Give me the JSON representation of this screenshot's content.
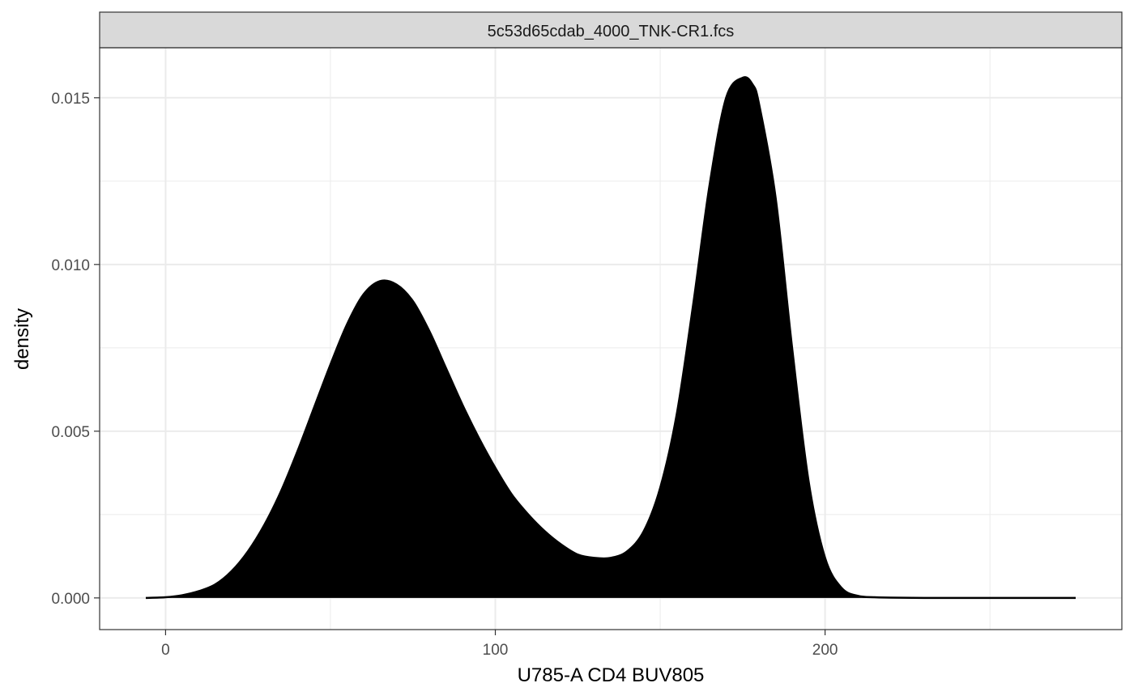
{
  "chart_data": {
    "type": "area",
    "facet_label": "5c53d65cdab_4000_TNK-CR1.fcs",
    "xlabel": "U785-A CD4 BUV805",
    "ylabel": "density",
    "xlim": [
      -20,
      290
    ],
    "ylim": [
      -0.00095,
      0.0165
    ],
    "x_ticks": [
      0,
      100,
      200
    ],
    "x_tick_labels": [
      "0",
      "100",
      "200"
    ],
    "y_ticks": [
      0.0,
      0.005,
      0.01,
      0.015
    ],
    "y_tick_labels": [
      "0.000",
      "0.005",
      "0.010",
      "0.015"
    ],
    "grid": true,
    "fill_color": "#000000",
    "series": [
      {
        "x": [
          -6,
          0,
          5,
          10,
          15,
          20,
          25,
          30,
          35,
          40,
          45,
          50,
          55,
          60,
          65,
          70,
          75,
          80,
          85,
          90,
          95,
          100,
          105,
          110,
          115,
          120,
          125,
          130,
          135,
          140,
          145,
          150,
          155,
          160,
          165,
          170,
          175,
          178,
          180,
          185,
          190,
          195,
          200,
          205,
          210,
          215,
          220,
          230,
          240,
          250,
          260,
          276
        ],
        "y": [
          0.0,
          2e-05,
          8e-05,
          0.0002,
          0.0004,
          0.0008,
          0.0014,
          0.0022,
          0.0032,
          0.0044,
          0.0057,
          0.007,
          0.0082,
          0.0091,
          0.0095,
          0.0094,
          0.0089,
          0.008,
          0.0069,
          0.0058,
          0.0048,
          0.0039,
          0.0031,
          0.0025,
          0.002,
          0.0016,
          0.0013,
          0.0012,
          0.0012,
          0.0014,
          0.002,
          0.0033,
          0.0055,
          0.0088,
          0.0124,
          0.015,
          0.0156,
          0.0154,
          0.0148,
          0.012,
          0.0075,
          0.0035,
          0.0012,
          0.0003,
          6e-05,
          2e-05,
          1e-05,
          0.0,
          0.0,
          0.0,
          0.0,
          0.0
        ]
      }
    ]
  }
}
